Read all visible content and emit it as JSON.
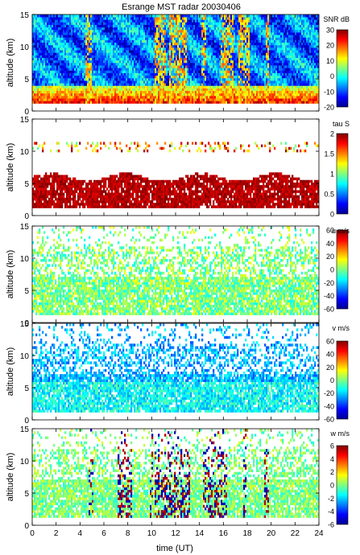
{
  "chart_data": {
    "type": "heatmap",
    "title": "Esrange MST radar 20030406",
    "xlabel": "time (UT)",
    "xlim": [
      0,
      24
    ],
    "x_ticks": [
      "0",
      "2",
      "4",
      "6",
      "8",
      "10",
      "12",
      "14",
      "16",
      "18",
      "20",
      "22",
      "24"
    ],
    "panels": [
      {
        "name": "snr",
        "ylabel": "altitude (km)",
        "ylim": [
          0,
          15
        ],
        "y_ticks": [
          "0",
          "5",
          "10",
          "15"
        ],
        "colorbar": {
          "label": "SNR dB",
          "range": [
            -20,
            30
          ],
          "ticks": [
            "30",
            "20",
            "10",
            "0",
            "-10",
            "-20"
          ],
          "colormap": "jet"
        },
        "description_values": {
          "echo_floor_km": 1,
          "strong_layer_km": [
            1,
            4
          ],
          "strong_layer_snr_db": 25,
          "upper_background_snr_db": -5,
          "enhanced_bands_ut": [
            [
              4.4,
              5.0
            ],
            [
              10.2,
              11.2
            ],
            [
              11.5,
              13.0
            ],
            [
              14.2,
              14.6
            ],
            [
              15.8,
              16.8
            ],
            [
              17.2,
              18.2
            ],
            [
              19.5,
              19.8
            ]
          ]
        }
      },
      {
        "name": "tau",
        "ylabel": "altitude (km)",
        "ylim": [
          0,
          15
        ],
        "y_ticks": [
          "0",
          "5",
          "10",
          "15"
        ],
        "colorbar": {
          "label": "tau S",
          "range": [
            0,
            2
          ],
          "ticks": [
            "2",
            "1.5",
            "1",
            "0.5",
            "0"
          ],
          "colormap": "jet"
        },
        "description_values": {
          "dense_layer_km": [
            1,
            6
          ],
          "dense_layer_tau_s": 2,
          "upper_echo_band_km": [
            10,
            11.5
          ]
        }
      },
      {
        "name": "u",
        "ylabel": "altitude (km)",
        "ylim": [
          0,
          15
        ],
        "y_ticks": [
          "0",
          "5",
          "10",
          "15"
        ],
        "colorbar": {
          "label": "u m/s",
          "range": [
            -60,
            60
          ],
          "ticks": [
            "60",
            "40",
            "20",
            "0",
            "-20",
            "-40",
            "-60"
          ],
          "colormap": "jet"
        },
        "description_values": {
          "typical_u_ms": 0
        }
      },
      {
        "name": "v",
        "ylabel": "altitude (km)",
        "ylim": [
          0,
          15
        ],
        "y_ticks": [
          "0",
          "5",
          "10",
          "15"
        ],
        "colorbar": {
          "label": "v m/s",
          "range": [
            -60,
            60
          ],
          "ticks": [
            "60",
            "40",
            "20",
            "0",
            "-20",
            "-40",
            "-60"
          ],
          "colormap": "jet"
        },
        "description_values": {
          "lower_v_ms": -15,
          "upper_v_ms": -30
        }
      },
      {
        "name": "w",
        "ylabel": "altitude (km)",
        "ylim": [
          0,
          15
        ],
        "y_ticks": [
          "0",
          "5",
          "10",
          "15"
        ],
        "colorbar": {
          "label": "w m/s",
          "range": [
            -6,
            6
          ],
          "ticks": [
            "6",
            "4",
            "2",
            "0",
            "-2",
            "-4",
            "-6"
          ],
          "colormap": "jet"
        },
        "description_values": {
          "typical_w_ms": 0,
          "extreme_w_bands_ut": [
            [
              4.7,
              5.1
            ],
            [
              7.2,
              8.3
            ],
            [
              9.8,
              10.1
            ],
            [
              10.3,
              13.2
            ],
            [
              14.3,
              16.3
            ],
            [
              17.7,
              17.9
            ],
            [
              19.4,
              19.8
            ]
          ]
        }
      }
    ]
  }
}
